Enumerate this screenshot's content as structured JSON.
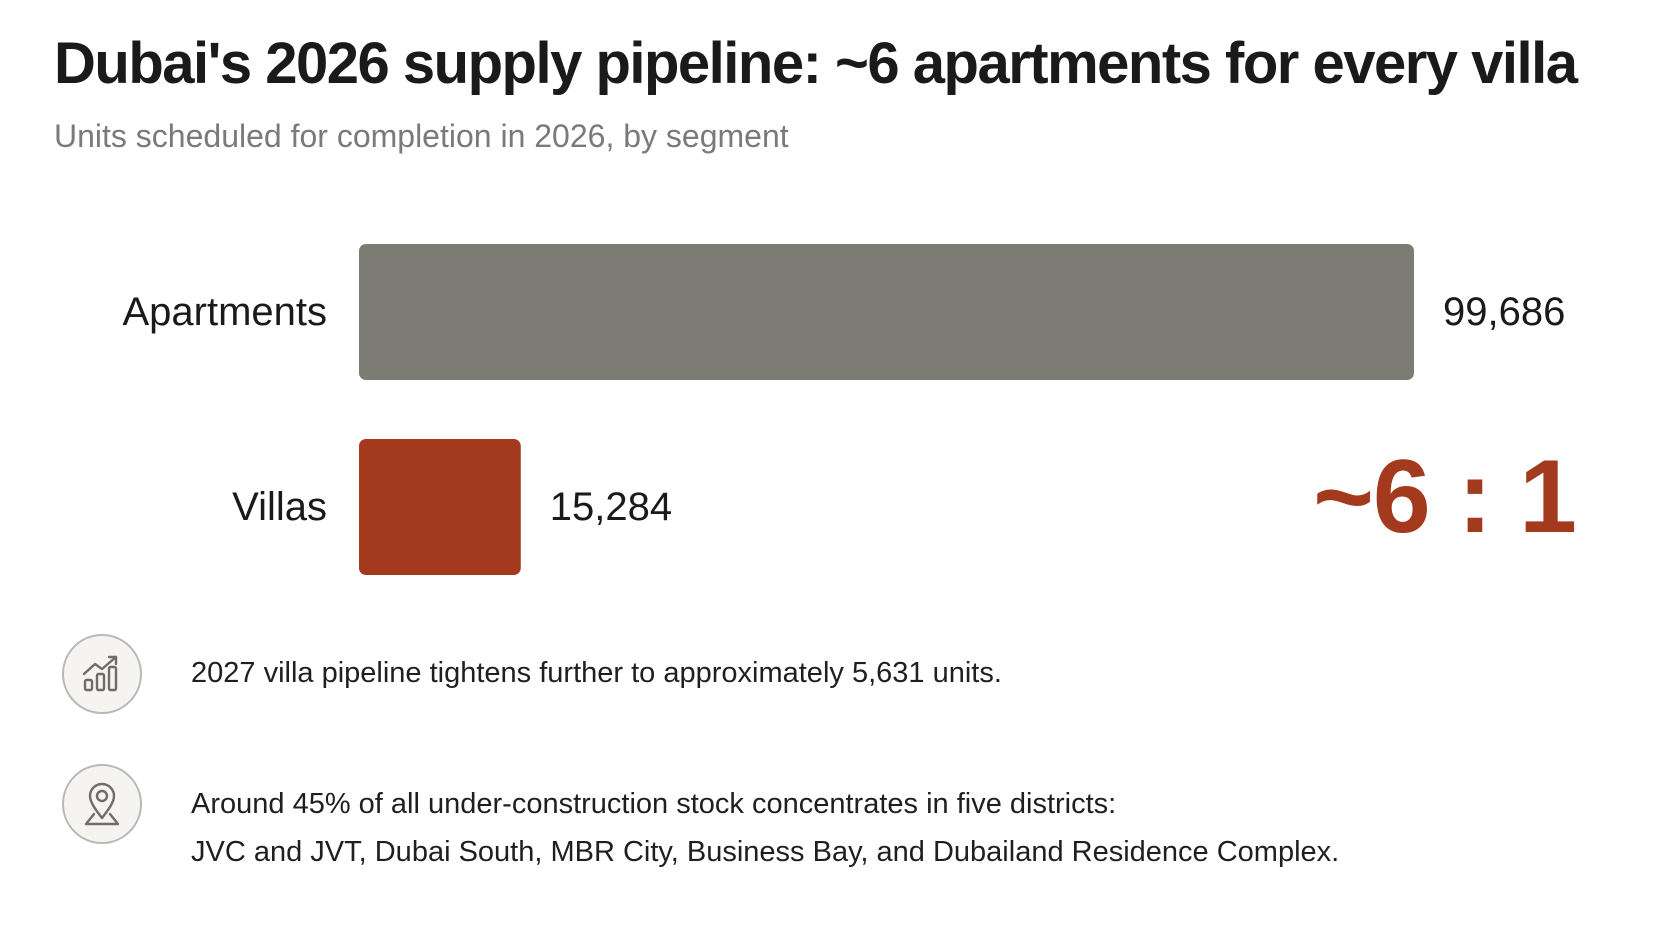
{
  "title": "Dubai's 2026 supply pipeline: ~6 apartments for every villa",
  "subtitle": "Units scheduled for completion in 2026, by segment",
  "chart_data": {
    "type": "bar",
    "orientation": "horizontal",
    "categories": [
      "Apartments",
      "Villas"
    ],
    "values": [
      99686,
      15284
    ],
    "value_labels": [
      "99,686",
      "15,284"
    ],
    "bar_colors": [
      "#7d7c74",
      "#a33a1d"
    ],
    "xlim": [
      0,
      99686
    ],
    "grid": false,
    "legend": "none",
    "title": "Dubai's 2026 supply pipeline: ~6 apartments for every villa",
    "subtitle": "Units scheduled for completion in 2026, by segment",
    "annotation": "~6 : 1"
  },
  "ratio_label": "~6 : 1",
  "notes": [
    {
      "icon": "trend-chart-icon",
      "lines": [
        "2027 villa pipeline tightens further to approximately 5,631 units."
      ]
    },
    {
      "icon": "location-pin-icon",
      "lines": [
        "Around 45% of all under-construction stock concentrates in five districts:",
        "JVC and JVT, Dubai South, MBR City, Business Bay, and Dubailand Residence Complex."
      ]
    }
  ],
  "colors": {
    "apartments": "#7d7c74",
    "villas": "#a33a1d",
    "accent": "#a33a1d",
    "subtitle": "#7a7a7a"
  }
}
